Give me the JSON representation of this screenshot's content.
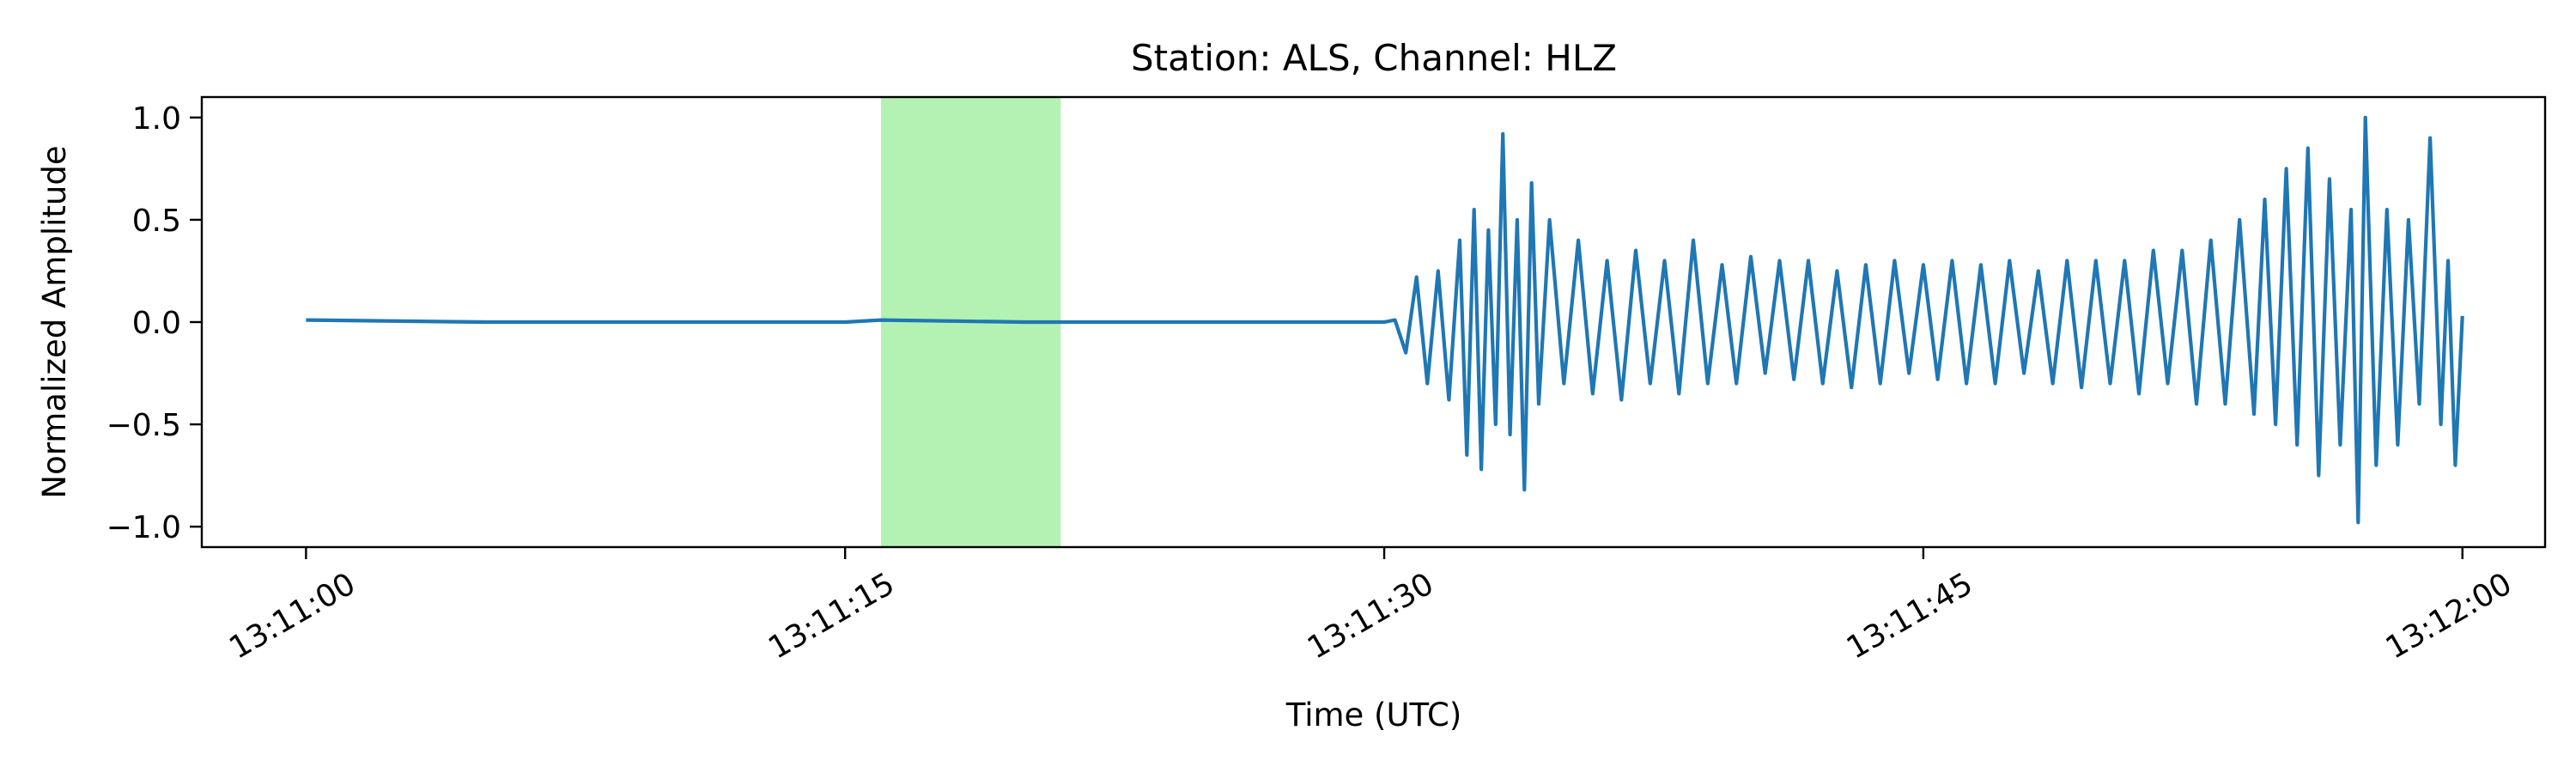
{
  "chart_data": {
    "type": "line",
    "title": "Station: ALS, Channel: HLZ",
    "xlabel": "Time (UTC)",
    "ylabel": "Normalized Amplitude",
    "x_range_seconds": [
      -2.9,
      62.3
    ],
    "ylim": [
      -1.1,
      1.1
    ],
    "x_ticks": [
      {
        "value": 0,
        "label": "13:11:00"
      },
      {
        "value": 15,
        "label": "13:11:15"
      },
      {
        "value": 30,
        "label": "13:11:30"
      },
      {
        "value": 45,
        "label": "13:11:45"
      },
      {
        "value": 60,
        "label": "13:12:00"
      }
    ],
    "y_ticks": [
      {
        "value": 1.0,
        "label": "1.0"
      },
      {
        "value": 0.5,
        "label": "0.5"
      },
      {
        "value": 0.0,
        "label": "0.0"
      },
      {
        "value": -0.5,
        "label": "−0.5"
      },
      {
        "value": -1.0,
        "label": "−1.0"
      }
    ],
    "highlight_window": {
      "start": 16.0,
      "end": 21.0,
      "color": "#b3f2b3"
    },
    "series": [
      {
        "color": "#1f77b4",
        "points": [
          [
            0.0,
            0.01
          ],
          [
            5.0,
            0.0
          ],
          [
            10.0,
            0.0
          ],
          [
            15.0,
            0.0
          ],
          [
            16.0,
            0.01
          ],
          [
            20.0,
            0.0
          ],
          [
            25.0,
            0.0
          ],
          [
            30.0,
            0.0
          ],
          [
            30.3,
            0.01
          ],
          [
            30.6,
            -0.15
          ],
          [
            30.9,
            0.22
          ],
          [
            31.2,
            -0.3
          ],
          [
            31.5,
            0.25
          ],
          [
            31.8,
            -0.38
          ],
          [
            32.1,
            0.4
          ],
          [
            32.3,
            -0.65
          ],
          [
            32.5,
            0.55
          ],
          [
            32.7,
            -0.72
          ],
          [
            32.9,
            0.45
          ],
          [
            33.1,
            -0.5
          ],
          [
            33.3,
            0.92
          ],
          [
            33.5,
            -0.55
          ],
          [
            33.7,
            0.5
          ],
          [
            33.9,
            -0.82
          ],
          [
            34.1,
            0.68
          ],
          [
            34.3,
            -0.4
          ],
          [
            34.6,
            0.5
          ],
          [
            35.0,
            -0.3
          ],
          [
            35.4,
            0.4
          ],
          [
            35.8,
            -0.35
          ],
          [
            36.2,
            0.3
          ],
          [
            36.6,
            -0.38
          ],
          [
            37.0,
            0.35
          ],
          [
            37.4,
            -0.3
          ],
          [
            37.8,
            0.3
          ],
          [
            38.2,
            -0.35
          ],
          [
            38.6,
            0.4
          ],
          [
            39.0,
            -0.3
          ],
          [
            39.4,
            0.28
          ],
          [
            39.8,
            -0.3
          ],
          [
            40.2,
            0.32
          ],
          [
            40.6,
            -0.25
          ],
          [
            41.0,
            0.3
          ],
          [
            41.4,
            -0.28
          ],
          [
            41.8,
            0.3
          ],
          [
            42.2,
            -0.3
          ],
          [
            42.6,
            0.25
          ],
          [
            43.0,
            -0.32
          ],
          [
            43.4,
            0.28
          ],
          [
            43.8,
            -0.3
          ],
          [
            44.2,
            0.3
          ],
          [
            44.6,
            -0.25
          ],
          [
            45.0,
            0.28
          ],
          [
            45.4,
            -0.28
          ],
          [
            45.8,
            0.3
          ],
          [
            46.2,
            -0.3
          ],
          [
            46.6,
            0.28
          ],
          [
            47.0,
            -0.3
          ],
          [
            47.4,
            0.3
          ],
          [
            47.8,
            -0.25
          ],
          [
            48.2,
            0.25
          ],
          [
            48.6,
            -0.3
          ],
          [
            49.0,
            0.3
          ],
          [
            49.4,
            -0.32
          ],
          [
            49.8,
            0.3
          ],
          [
            50.2,
            -0.3
          ],
          [
            50.6,
            0.3
          ],
          [
            51.0,
            -0.35
          ],
          [
            51.4,
            0.35
          ],
          [
            51.8,
            -0.3
          ],
          [
            52.2,
            0.35
          ],
          [
            52.6,
            -0.4
          ],
          [
            53.0,
            0.4
          ],
          [
            53.4,
            -0.4
          ],
          [
            53.8,
            0.5
          ],
          [
            54.2,
            -0.45
          ],
          [
            54.5,
            0.6
          ],
          [
            54.8,
            -0.5
          ],
          [
            55.1,
            0.75
          ],
          [
            55.4,
            -0.6
          ],
          [
            55.7,
            0.85
          ],
          [
            56.0,
            -0.75
          ],
          [
            56.3,
            0.7
          ],
          [
            56.6,
            -0.6
          ],
          [
            56.9,
            0.55
          ],
          [
            57.1,
            -0.98
          ],
          [
            57.3,
            1.0
          ],
          [
            57.6,
            -0.7
          ],
          [
            57.9,
            0.55
          ],
          [
            58.2,
            -0.6
          ],
          [
            58.5,
            0.5
          ],
          [
            58.8,
            -0.4
          ],
          [
            59.1,
            0.9
          ],
          [
            59.4,
            -0.5
          ],
          [
            59.6,
            0.3
          ],
          [
            59.8,
            -0.7
          ],
          [
            60.0,
            0.03
          ]
        ]
      }
    ]
  }
}
